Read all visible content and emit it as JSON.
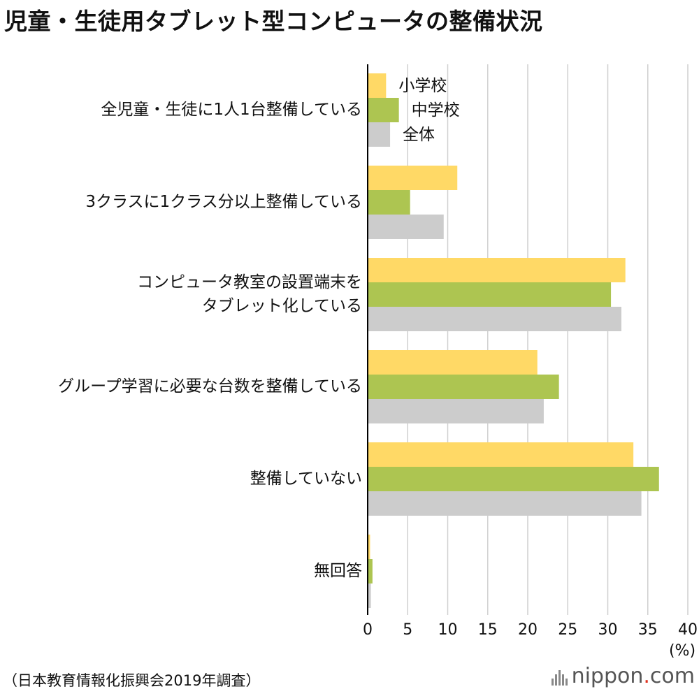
{
  "title": "児童・生徒用タブレット型コンピュータの整備状況",
  "source": "（日本教育情報化振興会2019年調査）",
  "brand": {
    "name": "nippon",
    "dot": ".",
    "tld": "com"
  },
  "colors": {
    "elementary": "#ffd966",
    "junior_high": "#adc551",
    "overall": "#cccccc",
    "grid": "#cfcfcf",
    "axis": "#000000"
  },
  "chart_data": {
    "type": "bar",
    "orientation": "horizontal",
    "title": "児童・生徒用タブレット型コンピュータの整備状況",
    "categories": [
      [
        "全児童・生徒に1人1台整備している"
      ],
      [
        "3クラスに1クラス分以上整備している"
      ],
      [
        "コンピュータ教室の設置端末を",
        "タブレット化している"
      ],
      [
        "グループ学習に必要な台数を整備している"
      ],
      [
        "整備していない"
      ],
      [
        "無回答"
      ]
    ],
    "series": [
      {
        "name": "小学校",
        "color": "#ffd966",
        "values": [
          2.3,
          11.2,
          32.2,
          21.2,
          33.2,
          0.3
        ]
      },
      {
        "name": "中学校",
        "color": "#adc551",
        "values": [
          3.9,
          5.3,
          30.4,
          23.9,
          36.4,
          0.6
        ]
      },
      {
        "name": "全体",
        "color": "#cccccc",
        "values": [
          2.8,
          9.5,
          31.7,
          22.0,
          34.2,
          0.4
        ]
      }
    ],
    "xlim": [
      0,
      40
    ],
    "xticks": [
      0,
      5,
      10,
      15,
      20,
      25,
      30,
      35,
      40
    ],
    "xunit": "(%)",
    "legend": "inline-first-group"
  }
}
